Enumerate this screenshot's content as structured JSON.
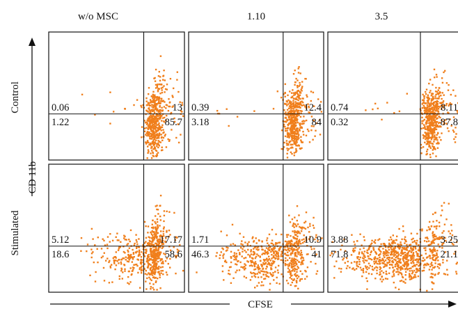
{
  "chart_data": {
    "type": "scatter",
    "x_axis_label": "CFSE",
    "y_axis_label": "CD 11b",
    "columns": [
      "w/o MSC",
      "1.10",
      "3.5"
    ],
    "rows": [
      "Control",
      "Stimulated"
    ],
    "point_color": "#f07f1c",
    "panels": [
      {
        "row": "Control",
        "column": "w/o MSC",
        "quadrants": {
          "upper_left": "0.06",
          "upper_right": "13",
          "lower_left": "1.22",
          "lower_right": "85.7"
        },
        "cluster": "tight-right"
      },
      {
        "row": "Control",
        "column": "1.10",
        "quadrants": {
          "upper_left": "0.39",
          "upper_right": "12.4",
          "lower_left": "3.18",
          "lower_right": "84"
        },
        "cluster": "tight-right"
      },
      {
        "row": "Control",
        "column": "3.5",
        "quadrants": {
          "upper_left": "0.74",
          "upper_right": "8.11",
          "lower_left": "0.32",
          "lower_right": "87.8"
        },
        "cluster": "tight-right"
      },
      {
        "row": "Stimulated",
        "column": "w/o MSC",
        "quadrants": {
          "upper_left": "5.12",
          "upper_right": "17.17",
          "lower_left": "18.6",
          "lower_right": "58.6"
        },
        "cluster": "spread-left-small"
      },
      {
        "row": "Stimulated",
        "column": "1.10",
        "quadrants": {
          "upper_left": "1.71",
          "upper_right": "10.9",
          "lower_left": "46.3",
          "lower_right": "41"
        },
        "cluster": "spread-left-medium"
      },
      {
        "row": "Stimulated",
        "column": "3.5",
        "quadrants": {
          "upper_left": "3.88",
          "upper_right": "3.25",
          "lower_left": "71.8",
          "lower_right": "21.1"
        },
        "cluster": "spread-left-large"
      }
    ]
  }
}
